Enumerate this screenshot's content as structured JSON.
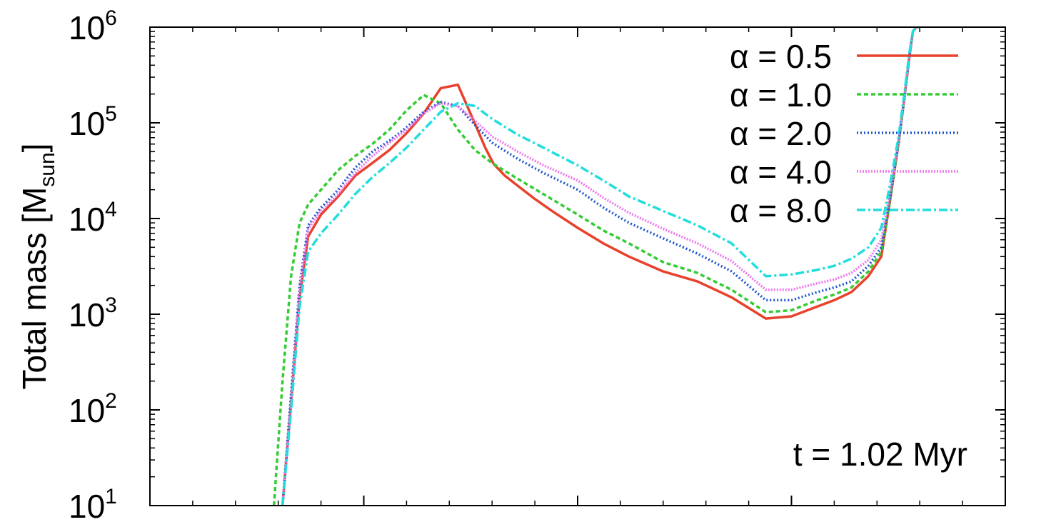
{
  "chart_data": {
    "type": "line",
    "title": "",
    "xlabel": "",
    "ylabel": "Total mass [M",
    "ylabel_sub": "sun",
    "ylabel_close": "]",
    "yscale": "log",
    "ylim": [
      10,
      1000000
    ],
    "xlim": [
      0,
      10
    ],
    "x_major_ticks": [
      0,
      2.5,
      5,
      7.5,
      10
    ],
    "x_minor_ticks": [
      0.5,
      1,
      1.5,
      2,
      3,
      3.5,
      4,
      4.5,
      5.5,
      6,
      6.5,
      7,
      8,
      8.5,
      9,
      9.5
    ],
    "yticks": [
      {
        "value": 10,
        "base": "10",
        "exp": "1"
      },
      {
        "value": 100,
        "base": "10",
        "exp": "2"
      },
      {
        "value": 1000,
        "base": "10",
        "exp": "3"
      },
      {
        "value": 10000,
        "base": "10",
        "exp": "4"
      },
      {
        "value": 100000,
        "base": "10",
        "exp": "5"
      },
      {
        "value": 1000000,
        "base": "10",
        "exp": "6"
      }
    ],
    "grid": false,
    "legend_position": "top-right",
    "annotation": "t = 1.02 Myr",
    "series": [
      {
        "name": "α = 0.5",
        "color": "#e8412c",
        "dash": "none",
        "x": [
          1.55,
          1.65,
          1.75,
          1.85,
          2.0,
          2.2,
          2.4,
          2.6,
          2.8,
          3.0,
          3.2,
          3.4,
          3.6,
          3.8,
          3.92,
          4.02,
          4.15,
          4.3,
          4.5,
          4.7,
          5.0,
          5.3,
          5.6,
          6.0,
          6.4,
          6.8,
          7.2,
          7.5,
          7.8,
          8.0,
          8.2,
          8.4,
          8.55,
          8.65,
          8.75,
          8.82,
          8.88,
          8.92,
          8.96,
          9.0
        ],
        "y": [
          10,
          120,
          1500,
          6500,
          11000,
          17000,
          28000,
          38000,
          52000,
          78000,
          125000,
          230000,
          250000,
          98000,
          55000,
          37000,
          28000,
          22000,
          16000,
          12000,
          8000,
          5500,
          4000,
          2800,
          2200,
          1500,
          900,
          950,
          1200,
          1400,
          1700,
          2500,
          4000,
          15000,
          60000,
          180000,
          500000,
          900000,
          1000000,
          1000000
        ]
      },
      {
        "name": "α = 1.0",
        "color": "#33cc33",
        "dash": "6,4",
        "x": [
          1.45,
          1.55,
          1.65,
          1.75,
          1.85,
          2.0,
          2.2,
          2.4,
          2.6,
          2.8,
          3.0,
          3.2,
          3.4,
          3.6,
          3.8,
          4.0,
          4.3,
          4.6,
          5.0,
          5.3,
          5.6,
          6.0,
          6.4,
          6.8,
          7.2,
          7.5,
          7.8,
          8.0,
          8.2,
          8.4,
          8.55,
          8.65,
          8.75,
          8.82,
          8.88,
          8.92,
          8.96,
          9.0
        ],
        "y": [
          10,
          200,
          2500,
          9000,
          14000,
          20000,
          32000,
          45000,
          60000,
          85000,
          135000,
          195000,
          160000,
          85000,
          52000,
          38000,
          26000,
          18000,
          11000,
          7500,
          5500,
          3500,
          2700,
          1800,
          1050,
          1100,
          1400,
          1600,
          1900,
          2800,
          4500,
          15000,
          60000,
          180000,
          500000,
          900000,
          1000000,
          1000000
        ]
      },
      {
        "name": "α = 2.0",
        "color": "#1f55cc",
        "dash": "2,3",
        "x": [
          1.55,
          1.65,
          1.75,
          1.85,
          2.0,
          2.2,
          2.4,
          2.6,
          2.8,
          3.0,
          3.2,
          3.4,
          3.6,
          3.8,
          4.0,
          4.3,
          4.6,
          5.0,
          5.3,
          5.6,
          6.0,
          6.4,
          6.8,
          7.2,
          7.5,
          7.8,
          8.0,
          8.2,
          8.4,
          8.55,
          8.65,
          8.75,
          8.82,
          8.88,
          8.92,
          8.96,
          9.0
        ],
        "y": [
          10,
          150,
          2000,
          8500,
          13000,
          20000,
          34000,
          50000,
          65000,
          90000,
          130000,
          165000,
          150000,
          95000,
          62000,
          42000,
          30000,
          20000,
          13000,
          9000,
          6200,
          4300,
          2800,
          1400,
          1400,
          1700,
          1900,
          2200,
          3200,
          5000,
          16000,
          60000,
          180000,
          500000,
          900000,
          1000000,
          1000000
        ]
      },
      {
        "name": "α = 4.0",
        "color": "#ee77ee",
        "dash": "2,2",
        "x": [
          1.55,
          1.65,
          1.75,
          1.85,
          2.0,
          2.2,
          2.4,
          2.6,
          2.8,
          3.0,
          3.2,
          3.4,
          3.6,
          3.8,
          4.0,
          4.3,
          4.6,
          5.0,
          5.3,
          5.6,
          6.0,
          6.4,
          6.8,
          7.2,
          7.5,
          7.8,
          8.0,
          8.2,
          8.4,
          8.55,
          8.65,
          8.75,
          8.82,
          8.88,
          8.92,
          8.96,
          9.0
        ],
        "y": [
          10,
          120,
          1800,
          7800,
          12000,
          18000,
          30000,
          45000,
          62000,
          85000,
          125000,
          160000,
          150000,
          105000,
          72000,
          50000,
          36000,
          25000,
          16500,
          11500,
          7800,
          5500,
          3600,
          1800,
          1800,
          2100,
          2300,
          2700,
          3700,
          6000,
          18000,
          62000,
          180000,
          500000,
          900000,
          1000000,
          1000000
        ]
      },
      {
        "name": "α = 8.0",
        "color": "#22dddd",
        "dash": "12,4,3,4",
        "x": [
          1.55,
          1.65,
          1.75,
          1.85,
          2.0,
          2.2,
          2.4,
          2.6,
          2.8,
          3.0,
          3.2,
          3.4,
          3.6,
          3.8,
          4.0,
          4.3,
          4.6,
          5.0,
          5.3,
          5.6,
          6.0,
          6.4,
          6.8,
          7.2,
          7.5,
          7.8,
          8.0,
          8.2,
          8.4,
          8.55,
          8.65,
          8.75,
          8.82,
          8.88,
          8.92,
          8.96,
          9.0
        ],
        "y": [
          10,
          100,
          1200,
          4500,
          7000,
          11000,
          18000,
          27000,
          38000,
          55000,
          85000,
          130000,
          160000,
          150000,
          110000,
          75000,
          55000,
          36000,
          25000,
          17000,
          12000,
          8500,
          5500,
          2500,
          2600,
          2900,
          3200,
          3800,
          5000,
          8000,
          22000,
          70000,
          200000,
          550000,
          900000,
          1000000,
          1000000
        ]
      }
    ]
  }
}
